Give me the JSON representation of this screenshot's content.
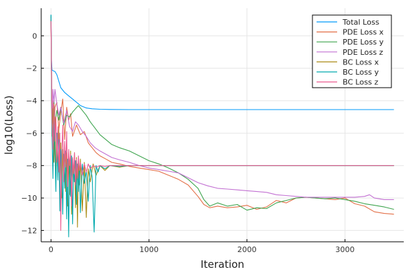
{
  "chart_data": {
    "type": "line",
    "xlabel": "Iteration",
    "ylabel": "log10(Loss)",
    "xlim": [
      -100,
      3600
    ],
    "ylim": [
      -12.7,
      1.7
    ],
    "x_ticks": [
      0,
      1000,
      2000,
      3000
    ],
    "y_ticks": [
      0,
      -2,
      -4,
      -6,
      -8,
      -10,
      -12
    ],
    "grid": true,
    "legend_position": "top-right",
    "series": [
      {
        "name": "Total Loss",
        "color": "#009AFA",
        "x": [
          0,
          5,
          10,
          20,
          40,
          60,
          80,
          100,
          140,
          180,
          220,
          260,
          300,
          360,
          420,
          500,
          600,
          800,
          1000,
          1500,
          2000,
          2500,
          3000,
          3500
        ],
        "y": [
          1.3,
          -1.5,
          -2.1,
          -2.15,
          -2.2,
          -2.4,
          -2.8,
          -3.2,
          -3.5,
          -3.7,
          -3.9,
          -4.1,
          -4.3,
          -4.45,
          -4.5,
          -4.53,
          -4.54,
          -4.55,
          -4.55,
          -4.55,
          -4.55,
          -4.55,
          -4.55,
          -4.55
        ]
      },
      {
        "name": "PDE Loss x",
        "color": "#E36F47",
        "x": [
          0,
          10,
          20,
          30,
          40,
          60,
          80,
          100,
          120,
          140,
          160,
          180,
          200,
          220,
          260,
          300,
          340,
          380,
          420,
          460,
          500,
          560,
          620,
          700,
          800,
          900,
          1000,
          1100,
          1200,
          1300,
          1400,
          1500,
          1560,
          1620,
          1700,
          1800,
          1900,
          2000,
          2100,
          2200,
          2300,
          2400,
          2500,
          2600,
          2700,
          2800,
          2900,
          3000,
          3100,
          3200,
          3300,
          3400,
          3500
        ],
        "y": [
          1.0,
          -5.5,
          -4.0,
          -6.5,
          -4.4,
          -4.1,
          -5.8,
          -4.7,
          -3.9,
          -6.4,
          -4.4,
          -5.2,
          -4.8,
          -6.2,
          -5.5,
          -6.1,
          -5.9,
          -6.6,
          -6.9,
          -7.2,
          -7.4,
          -7.6,
          -7.8,
          -7.9,
          -8.05,
          -8.15,
          -8.25,
          -8.35,
          -8.6,
          -8.85,
          -9.2,
          -9.9,
          -10.4,
          -10.6,
          -10.5,
          -10.6,
          -10.55,
          -10.45,
          -10.7,
          -10.55,
          -10.15,
          -10.3,
          -10.0,
          -9.95,
          -10.0,
          -10.05,
          -10.1,
          -10.0,
          -10.35,
          -10.5,
          -10.85,
          -10.95,
          -11.0
        ]
      },
      {
        "name": "PDE Loss y",
        "color": "#3EA44E",
        "x": [
          0,
          10,
          20,
          30,
          40,
          60,
          80,
          100,
          130,
          160,
          190,
          220,
          250,
          280,
          320,
          360,
          400,
          450,
          500,
          560,
          620,
          700,
          800,
          900,
          1000,
          1100,
          1200,
          1300,
          1400,
          1500,
          1560,
          1620,
          1700,
          1800,
          1900,
          2000,
          2100,
          2200,
          2300,
          2400,
          2500,
          2600,
          2700,
          2800,
          2900,
          3000,
          3100,
          3200,
          3300,
          3400,
          3500
        ],
        "y": [
          1.2,
          -4.8,
          -6.9,
          -4.0,
          -5.5,
          -4.6,
          -5.2,
          -4.4,
          -5.5,
          -4.9,
          -5.0,
          -4.7,
          -4.5,
          -4.3,
          -4.6,
          -4.9,
          -5.3,
          -5.7,
          -6.1,
          -6.4,
          -6.7,
          -6.9,
          -7.1,
          -7.4,
          -7.7,
          -7.9,
          -8.15,
          -8.45,
          -8.85,
          -9.4,
          -10.1,
          -10.5,
          -10.3,
          -10.5,
          -10.4,
          -10.75,
          -10.6,
          -10.65,
          -10.3,
          -10.15,
          -10.0,
          -9.95,
          -10.0,
          -10.05,
          -10.0,
          -10.1,
          -10.2,
          -10.35,
          -10.45,
          -10.55,
          -10.7
        ]
      },
      {
        "name": "PDE Loss z",
        "color": "#C270D2",
        "x": [
          0,
          10,
          20,
          30,
          40,
          60,
          80,
          100,
          130,
          160,
          190,
          220,
          250,
          280,
          320,
          360,
          400,
          450,
          500,
          560,
          620,
          700,
          800,
          900,
          1000,
          1100,
          1200,
          1300,
          1400,
          1500,
          1600,
          1700,
          1800,
          1900,
          2000,
          2100,
          2200,
          2300,
          2400,
          2500,
          2600,
          2700,
          2800,
          2900,
          3000,
          3100,
          3200,
          3250,
          3300,
          3400,
          3500
        ],
        "y": [
          1.1,
          -5.5,
          -3.3,
          -4.1,
          -3.3,
          -4.2,
          -4.9,
          -4.4,
          -5.4,
          -4.6,
          -5.6,
          -5.9,
          -5.3,
          -5.5,
          -5.9,
          -6.2,
          -6.6,
          -6.9,
          -7.1,
          -7.3,
          -7.5,
          -7.65,
          -7.8,
          -8.0,
          -8.15,
          -8.25,
          -8.35,
          -8.45,
          -8.75,
          -9.05,
          -9.25,
          -9.4,
          -9.45,
          -9.5,
          -9.55,
          -9.6,
          -9.65,
          -9.8,
          -9.85,
          -9.9,
          -9.95,
          -9.95,
          -9.95,
          -9.95,
          -9.95,
          -9.95,
          -9.9,
          -9.8,
          -10.0,
          -10.1,
          -10.1
        ]
      },
      {
        "name": "BC Loss x",
        "color": "#AC8D18",
        "x": [
          0,
          10,
          20,
          30,
          40,
          50,
          60,
          70,
          80,
          90,
          100,
          110,
          120,
          130,
          140,
          150,
          160,
          170,
          180,
          190,
          200,
          210,
          220,
          230,
          240,
          250,
          260,
          270,
          280,
          290,
          300,
          320,
          340,
          360,
          380,
          400,
          430,
          460,
          500,
          550,
          600,
          700,
          800,
          1000,
          1500,
          2000,
          2500,
          3000,
          3500
        ],
        "y": [
          1.0,
          -6.2,
          -4.5,
          -7.8,
          -5.0,
          -9.0,
          -6.0,
          -8.5,
          -5.8,
          -9.5,
          -6.6,
          -10.0,
          -7.0,
          -8.8,
          -6.8,
          -9.6,
          -7.2,
          -10.5,
          -7.4,
          -9.8,
          -7.1,
          -11.0,
          -7.6,
          -9.0,
          -7.2,
          -10.6,
          -7.5,
          -11.8,
          -7.8,
          -9.2,
          -7.6,
          -10.8,
          -7.8,
          -11.2,
          -8.2,
          -9.0,
          -7.9,
          -8.6,
          -8.0,
          -8.3,
          -8.0,
          -8.1,
          -8.0,
          -8.0,
          -8.0,
          -8.0,
          -8.0,
          -8.0,
          -8.0
        ]
      },
      {
        "name": "BC Loss y",
        "color": "#00A9AD",
        "x": [
          0,
          10,
          20,
          30,
          40,
          50,
          60,
          70,
          80,
          90,
          100,
          110,
          120,
          130,
          140,
          150,
          160,
          170,
          180,
          190,
          200,
          210,
          220,
          230,
          240,
          250,
          260,
          270,
          280,
          290,
          300,
          320,
          340,
          360,
          380,
          400,
          420,
          440,
          460,
          480,
          500,
          550,
          600,
          700,
          800,
          1000,
          1500,
          2000,
          2500,
          3000,
          3500
        ],
        "y": [
          1.3,
          -5.8,
          -8.8,
          -4.5,
          -7.2,
          -9.6,
          -6.0,
          -8.9,
          -6.4,
          -10.8,
          -7.0,
          -8.3,
          -11.0,
          -7.3,
          -9.4,
          -7.1,
          -11.3,
          -7.6,
          -12.4,
          -7.8,
          -9.9,
          -7.4,
          -11.6,
          -8.2,
          -9.0,
          -7.7,
          -10.4,
          -7.9,
          -9.6,
          -8.1,
          -10.9,
          -7.9,
          -9.1,
          -8.3,
          -10.2,
          -8.0,
          -8.7,
          -12.1,
          -8.0,
          -8.4,
          -8.0,
          -8.2,
          -8.0,
          -8.05,
          -8.0,
          -8.0,
          -8.0,
          -8.0,
          -8.0,
          -8.0,
          -8.0
        ]
      },
      {
        "name": "BC Loss z",
        "color": "#ED5D92",
        "x": [
          0,
          10,
          20,
          30,
          40,
          50,
          60,
          70,
          80,
          90,
          100,
          110,
          120,
          130,
          140,
          150,
          160,
          170,
          180,
          190,
          200,
          210,
          220,
          230,
          240,
          250,
          260,
          270,
          280,
          290,
          300,
          320,
          340,
          360,
          380,
          400,
          430,
          460,
          500,
          550,
          600,
          700,
          800,
          1000,
          1500,
          2000,
          2500,
          3000,
          3500
        ],
        "y": [
          0.9,
          -5.0,
          -7.0,
          -4.2,
          -6.5,
          -5.0,
          -7.8,
          -5.6,
          -8.4,
          -6.0,
          -12.0,
          -7.2,
          -5.5,
          -9.0,
          -6.5,
          -8.1,
          -5.9,
          -9.3,
          -7.0,
          -8.0,
          -7.3,
          -10.5,
          -7.5,
          -8.5,
          -7.2,
          -9.2,
          -7.6,
          -8.8,
          -7.4,
          -8.3,
          -7.8,
          -8.6,
          -7.9,
          -8.4,
          -7.9,
          -8.2,
          -8.0,
          -8.1,
          -8.0,
          -8.05,
          -8.0,
          -8.0,
          -8.0,
          -8.0,
          -8.0,
          -8.0,
          -8.0,
          -8.0,
          -8.0
        ]
      }
    ]
  }
}
